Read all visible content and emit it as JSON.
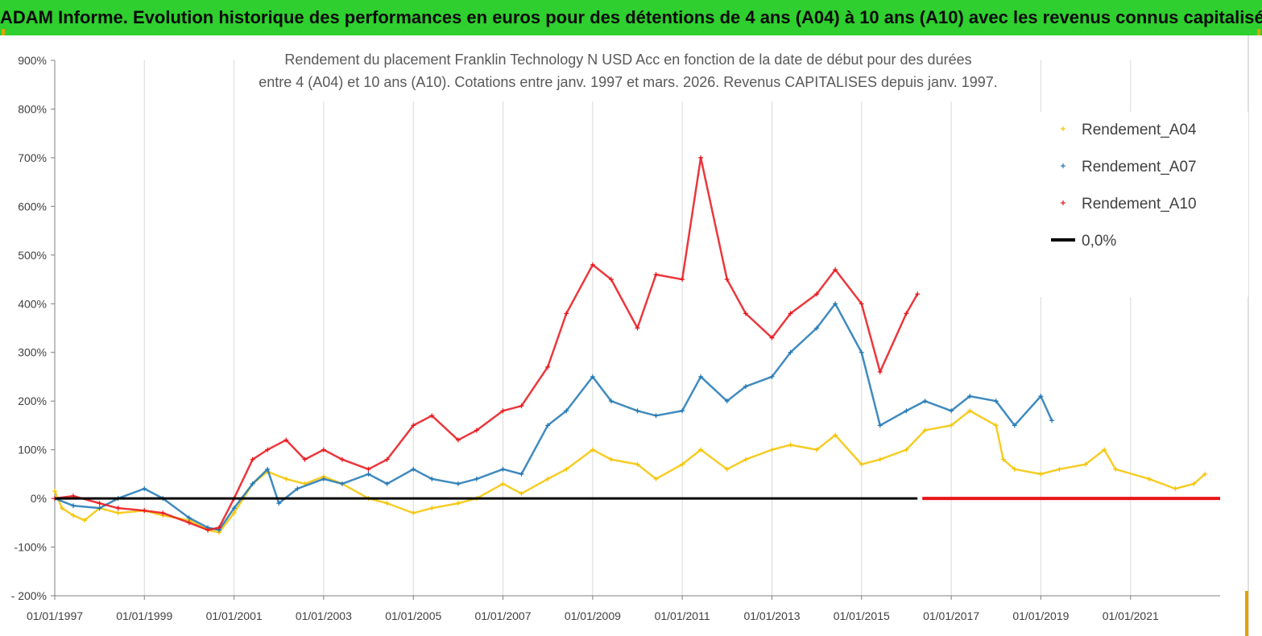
{
  "header": {
    "title": "ADAM Informe. Evolution historique des performances en euros pour des détentions de 4 ans (A04) à 10 ans (A10) avec les revenus connus capitalisés"
  },
  "chart_data": {
    "type": "scatter",
    "title_line1": "Rendement du placement Franklin Technology N USD  Acc en fonction de la date de début pour des durées",
    "title_line2": "entre 4 (A04) et 10 ans (A10). Cotations entre janv. 1997 et mars. 2026. Revenus CAPITALISES depuis janv. 1997.",
    "xlabel": "",
    "ylabel": "",
    "x_range": [
      "1997-01-01",
      "2023-01-01"
    ],
    "ylim": [
      -200,
      900
    ],
    "y_unit": "%",
    "y_ticks": [
      "900%",
      "800%",
      "700%",
      "600%",
      "500%",
      "400%",
      "300%",
      "200%",
      "100%",
      "0%",
      "-100%",
      "- 200%"
    ],
    "x_ticks": [
      "01/01/1997",
      "01/01/1999",
      "01/01/2001",
      "01/01/2003",
      "01/01/2005",
      "01/01/2007",
      "01/01/2009",
      "01/01/2011",
      "01/01/2013",
      "01/01/2015",
      "01/01/2017",
      "01/01/2019",
      "01/01/2021"
    ],
    "grid": "vertical",
    "legend_position": "right",
    "series": [
      {
        "name": "Rendement_A04",
        "color": "#f5c400",
        "marker": "+",
        "points": [
          [
            "1997-01-01",
            15
          ],
          [
            "1997-03-01",
            -20
          ],
          [
            "1997-06-01",
            -35
          ],
          [
            "1997-09-01",
            -45
          ],
          [
            "1998-01-01",
            -20
          ],
          [
            "1998-06-01",
            -30
          ],
          [
            "1999-01-01",
            -25
          ],
          [
            "1999-06-01",
            -35
          ],
          [
            "2000-01-01",
            -45
          ],
          [
            "2000-06-01",
            -65
          ],
          [
            "2000-09-01",
            -70
          ],
          [
            "2001-01-01",
            -30
          ],
          [
            "2001-06-01",
            30
          ],
          [
            "2001-10-01",
            55
          ],
          [
            "2002-03-01",
            40
          ],
          [
            "2002-08-01",
            30
          ],
          [
            "2003-01-01",
            45
          ],
          [
            "2003-06-01",
            30
          ],
          [
            "2004-01-01",
            0
          ],
          [
            "2004-06-01",
            -10
          ],
          [
            "2005-01-01",
            -30
          ],
          [
            "2005-06-01",
            -20
          ],
          [
            "2006-01-01",
            -10
          ],
          [
            "2006-06-01",
            0
          ],
          [
            "2007-01-01",
            30
          ],
          [
            "2007-06-01",
            10
          ],
          [
            "2008-01-01",
            40
          ],
          [
            "2008-06-01",
            60
          ],
          [
            "2009-01-01",
            100
          ],
          [
            "2009-06-01",
            80
          ],
          [
            "2010-01-01",
            70
          ],
          [
            "2010-06-01",
            40
          ],
          [
            "2011-01-01",
            70
          ],
          [
            "2011-06-01",
            100
          ],
          [
            "2012-01-01",
            60
          ],
          [
            "2012-06-01",
            80
          ],
          [
            "2013-01-01",
            100
          ],
          [
            "2013-06-01",
            110
          ],
          [
            "2014-01-01",
            100
          ],
          [
            "2014-06-01",
            130
          ],
          [
            "2015-01-01",
            70
          ],
          [
            "2015-06-01",
            80
          ],
          [
            "2016-01-01",
            100
          ],
          [
            "2016-06-01",
            140
          ],
          [
            "2017-01-01",
            150
          ],
          [
            "2017-06-01",
            180
          ],
          [
            "2018-01-01",
            150
          ],
          [
            "2018-03-01",
            80
          ],
          [
            "2018-06-01",
            60
          ],
          [
            "2019-01-01",
            50
          ],
          [
            "2019-06-01",
            60
          ],
          [
            "2020-01-01",
            70
          ],
          [
            "2020-06-01",
            100
          ],
          [
            "2020-09-01",
            60
          ],
          [
            "2021-06-01",
            40
          ],
          [
            "2022-01-01",
            20
          ],
          [
            "2022-06-01",
            30
          ],
          [
            "2022-09-01",
            50
          ]
        ]
      },
      {
        "name": "Rendement_A07",
        "color": "#1f77b4",
        "marker": "+",
        "points": [
          [
            "1997-01-01",
            0
          ],
          [
            "1997-06-01",
            -15
          ],
          [
            "1998-01-01",
            -20
          ],
          [
            "1998-06-01",
            0
          ],
          [
            "1999-01-01",
            20
          ],
          [
            "1999-06-01",
            0
          ],
          [
            "2000-01-01",
            -40
          ],
          [
            "2000-06-01",
            -60
          ],
          [
            "2000-09-01",
            -65
          ],
          [
            "2001-01-01",
            -20
          ],
          [
            "2001-06-01",
            30
          ],
          [
            "2001-10-01",
            60
          ],
          [
            "2002-01-01",
            -10
          ],
          [
            "2002-06-01",
            20
          ],
          [
            "2003-01-01",
            40
          ],
          [
            "2003-06-01",
            30
          ],
          [
            "2004-01-01",
            50
          ],
          [
            "2004-06-01",
            30
          ],
          [
            "2005-01-01",
            60
          ],
          [
            "2005-06-01",
            40
          ],
          [
            "2006-01-01",
            30
          ],
          [
            "2006-06-01",
            40
          ],
          [
            "2007-01-01",
            60
          ],
          [
            "2007-06-01",
            50
          ],
          [
            "2008-01-01",
            150
          ],
          [
            "2008-06-01",
            180
          ],
          [
            "2009-01-01",
            250
          ],
          [
            "2009-06-01",
            200
          ],
          [
            "2010-01-01",
            180
          ],
          [
            "2010-06-01",
            170
          ],
          [
            "2011-01-01",
            180
          ],
          [
            "2011-06-01",
            250
          ],
          [
            "2012-01-01",
            200
          ],
          [
            "2012-06-01",
            230
          ],
          [
            "2013-01-01",
            250
          ],
          [
            "2013-06-01",
            300
          ],
          [
            "2014-01-01",
            350
          ],
          [
            "2014-06-01",
            400
          ],
          [
            "2015-01-01",
            300
          ],
          [
            "2015-06-01",
            150
          ],
          [
            "2016-01-01",
            180
          ],
          [
            "2016-06-01",
            200
          ],
          [
            "2017-01-01",
            180
          ],
          [
            "2017-06-01",
            210
          ],
          [
            "2018-01-01",
            200
          ],
          [
            "2018-06-01",
            150
          ],
          [
            "2019-01-01",
            210
          ],
          [
            "2019-04-01",
            160
          ]
        ]
      },
      {
        "name": "Rendement_A10",
        "color": "#e8141a",
        "marker": "+",
        "points": [
          [
            "1997-01-01",
            0
          ],
          [
            "1997-06-01",
            5
          ],
          [
            "1998-01-01",
            -10
          ],
          [
            "1998-06-01",
            -20
          ],
          [
            "1999-01-01",
            -25
          ],
          [
            "1999-06-01",
            -30
          ],
          [
            "2000-01-01",
            -50
          ],
          [
            "2000-06-01",
            -65
          ],
          [
            "2000-09-01",
            -60
          ],
          [
            "2001-01-01",
            0
          ],
          [
            "2001-06-01",
            80
          ],
          [
            "2001-10-01",
            100
          ],
          [
            "2002-03-01",
            120
          ],
          [
            "2002-08-01",
            80
          ],
          [
            "2003-01-01",
            100
          ],
          [
            "2003-06-01",
            80
          ],
          [
            "2004-01-01",
            60
          ],
          [
            "2004-06-01",
            80
          ],
          [
            "2005-01-01",
            150
          ],
          [
            "2005-06-01",
            170
          ],
          [
            "2006-01-01",
            120
          ],
          [
            "2006-06-01",
            140
          ],
          [
            "2007-01-01",
            180
          ],
          [
            "2007-06-01",
            190
          ],
          [
            "2008-01-01",
            270
          ],
          [
            "2008-06-01",
            380
          ],
          [
            "2009-01-01",
            480
          ],
          [
            "2009-06-01",
            450
          ],
          [
            "2010-01-01",
            350
          ],
          [
            "2010-06-01",
            460
          ],
          [
            "2011-01-01",
            450
          ],
          [
            "2011-06-01",
            700
          ],
          [
            "2012-01-01",
            450
          ],
          [
            "2012-06-01",
            380
          ],
          [
            "2013-01-01",
            330
          ],
          [
            "2013-06-01",
            380
          ],
          [
            "2014-01-01",
            420
          ],
          [
            "2014-06-01",
            470
          ],
          [
            "2015-01-01",
            400
          ],
          [
            "2015-06-01",
            260
          ],
          [
            "2016-01-01",
            380
          ],
          [
            "2016-04-01",
            420
          ]
        ]
      },
      {
        "name": "0,0%",
        "color": "#000000",
        "marker": "line",
        "points": [
          [
            "1997-01-01",
            0
          ],
          [
            "2016-04-01",
            0
          ]
        ]
      }
    ]
  }
}
